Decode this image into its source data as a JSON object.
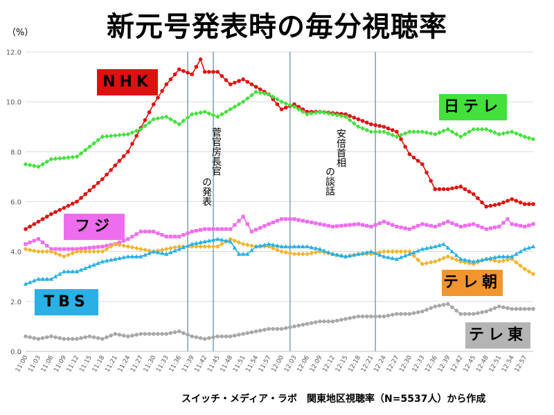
{
  "title": "新元号発表時の毎分視聴率",
  "unit_label": "（%）",
  "source_note": "スイッチ・メディア・ラボ　関東地区視聴率（N=5537人）から作成",
  "annotations": {
    "suga_line1": "菅官房長官",
    "suga_line2": "の発表",
    "abe_line1": "安倍首相",
    "abe_line2": "の談話"
  },
  "legend_tags": [
    {
      "label": "NHK",
      "bg": "#e01010"
    },
    {
      "label": "日テレ",
      "bg": "#44e03c"
    },
    {
      "label": "フジ",
      "bg": "#ee6cee"
    },
    {
      "label": "テレ朝",
      "bg": "#f2952e"
    },
    {
      "label": "TBS",
      "bg": "#2ab0e4"
    },
    {
      "label": "テレ東",
      "bg": "#b4b4b4"
    }
  ],
  "chart_data": {
    "type": "line",
    "x_start": "11:00",
    "x_end": "12:59",
    "x_tick_labels": [
      "11:00",
      "11:03",
      "11:06",
      "11:09",
      "11:12",
      "11:15",
      "11:18",
      "11:21",
      "11:24",
      "11:27",
      "11:30",
      "11:33",
      "11:36",
      "11:39",
      "11:42",
      "11:45",
      "11:48",
      "11:51",
      "11:54",
      "11:57",
      "12:00",
      "12:03",
      "12:06",
      "12:09",
      "12:12",
      "12:15",
      "12:18",
      "12:21",
      "12:24",
      "12:27",
      "12:30",
      "12:33",
      "12:36",
      "12:39",
      "12:42",
      "12:45",
      "12:48",
      "12:51",
      "12:54",
      "12:57"
    ],
    "ylim": [
      0,
      12
    ],
    "y_ticks": [
      "0.0",
      "2.0",
      "4.0",
      "6.0",
      "8.0",
      "10.0",
      "12.0"
    ],
    "vertical_markers": [
      "11:38",
      "11:44",
      "12:02",
      "12:22"
    ],
    "grid": true,
    "series": [
      {
        "name": "NHK",
        "color": "#e01010",
        "marker": "circle",
        "keypoints": [
          [
            "11:00",
            4.9
          ],
          [
            "11:06",
            5.5
          ],
          [
            "11:12",
            6.0
          ],
          [
            "11:18",
            6.9
          ],
          [
            "11:24",
            8.0
          ],
          [
            "11:30",
            9.9
          ],
          [
            "11:33",
            10.7
          ],
          [
            "11:36",
            11.3
          ],
          [
            "11:39",
            11.1
          ],
          [
            "11:41",
            11.7
          ],
          [
            "11:42",
            11.2
          ],
          [
            "11:45",
            11.2
          ],
          [
            "11:48",
            10.7
          ],
          [
            "11:51",
            10.9
          ],
          [
            "11:54",
            10.6
          ],
          [
            "11:57",
            10.3
          ],
          [
            "12:00",
            9.7
          ],
          [
            "12:03",
            9.9
          ],
          [
            "12:06",
            9.6
          ],
          [
            "12:09",
            9.6
          ],
          [
            "12:15",
            9.5
          ],
          [
            "12:18",
            9.3
          ],
          [
            "12:21",
            9.1
          ],
          [
            "12:24",
            9.0
          ],
          [
            "12:27",
            8.8
          ],
          [
            "12:30",
            7.9
          ],
          [
            "12:33",
            7.5
          ],
          [
            "12:36",
            6.5
          ],
          [
            "12:39",
            6.5
          ],
          [
            "12:42",
            6.6
          ],
          [
            "12:45",
            6.3
          ],
          [
            "12:48",
            5.8
          ],
          [
            "12:51",
            5.9
          ],
          [
            "12:54",
            6.1
          ],
          [
            "12:57",
            5.9
          ],
          [
            "12:59",
            5.9
          ]
        ]
      },
      {
        "name": "日テレ",
        "color": "#44e03c",
        "marker": "diamond",
        "keypoints": [
          [
            "11:00",
            7.5
          ],
          [
            "11:03",
            7.4
          ],
          [
            "11:06",
            7.7
          ],
          [
            "11:12",
            7.8
          ],
          [
            "11:18",
            8.6
          ],
          [
            "11:24",
            8.7
          ],
          [
            "11:27",
            8.9
          ],
          [
            "11:30",
            9.3
          ],
          [
            "11:33",
            9.4
          ],
          [
            "11:36",
            9.1
          ],
          [
            "11:39",
            9.5
          ],
          [
            "11:42",
            9.6
          ],
          [
            "11:45",
            9.4
          ],
          [
            "11:48",
            9.7
          ],
          [
            "11:51",
            10.0
          ],
          [
            "11:54",
            10.4
          ],
          [
            "11:57",
            10.3
          ],
          [
            "12:00",
            10.0
          ],
          [
            "12:03",
            9.8
          ],
          [
            "12:06",
            9.5
          ],
          [
            "12:09",
            9.6
          ],
          [
            "12:12",
            9.5
          ],
          [
            "12:15",
            9.4
          ],
          [
            "12:18",
            9.0
          ],
          [
            "12:21",
            8.8
          ],
          [
            "12:24",
            8.8
          ],
          [
            "12:27",
            8.6
          ],
          [
            "12:30",
            8.8
          ],
          [
            "12:33",
            8.8
          ],
          [
            "12:36",
            8.7
          ],
          [
            "12:39",
            8.9
          ],
          [
            "12:42",
            8.6
          ],
          [
            "12:45",
            8.9
          ],
          [
            "12:48",
            8.9
          ],
          [
            "12:51",
            8.7
          ],
          [
            "12:54",
            8.8
          ],
          [
            "12:57",
            8.6
          ],
          [
            "12:59",
            8.5
          ]
        ]
      },
      {
        "name": "フジ",
        "color": "#ee6cee",
        "marker": "square",
        "keypoints": [
          [
            "11:00",
            4.3
          ],
          [
            "11:03",
            4.5
          ],
          [
            "11:06",
            4.1
          ],
          [
            "11:12",
            4.1
          ],
          [
            "11:18",
            4.2
          ],
          [
            "11:21",
            4.3
          ],
          [
            "11:24",
            4.5
          ],
          [
            "11:27",
            4.8
          ],
          [
            "11:30",
            4.8
          ],
          [
            "11:33",
            4.6
          ],
          [
            "11:36",
            4.6
          ],
          [
            "11:39",
            4.8
          ],
          [
            "11:42",
            4.9
          ],
          [
            "11:45",
            4.9
          ],
          [
            "11:48",
            4.9
          ],
          [
            "11:51",
            5.4
          ],
          [
            "11:53",
            4.8
          ],
          [
            "11:57",
            5.1
          ],
          [
            "12:00",
            5.3
          ],
          [
            "12:03",
            5.3
          ],
          [
            "12:06",
            5.2
          ],
          [
            "12:12",
            5.0
          ],
          [
            "12:18",
            5.1
          ],
          [
            "12:21",
            5.0
          ],
          [
            "12:24",
            5.2
          ],
          [
            "12:27",
            5.0
          ],
          [
            "12:30",
            4.9
          ],
          [
            "12:33",
            5.1
          ],
          [
            "12:36",
            5.0
          ],
          [
            "12:39",
            5.2
          ],
          [
            "12:42",
            5.0
          ],
          [
            "12:45",
            5.1
          ],
          [
            "12:48",
            4.9
          ],
          [
            "12:51",
            5.0
          ],
          [
            "12:53",
            5.3
          ],
          [
            "12:54",
            5.1
          ],
          [
            "12:57",
            5.0
          ],
          [
            "12:59",
            5.1
          ]
        ]
      },
      {
        "name": "テレ朝",
        "color": "#f2b42a",
        "marker": "diamond",
        "keypoints": [
          [
            "11:00",
            4.1
          ],
          [
            "11:03",
            4.0
          ],
          [
            "11:06",
            4.0
          ],
          [
            "11:09",
            3.8
          ],
          [
            "11:12",
            4.0
          ],
          [
            "11:18",
            4.0
          ],
          [
            "11:21",
            4.3
          ],
          [
            "11:24",
            4.2
          ],
          [
            "11:27",
            4.1
          ],
          [
            "11:30",
            4.0
          ],
          [
            "11:33",
            4.1
          ],
          [
            "11:36",
            4.2
          ],
          [
            "11:39",
            4.2
          ],
          [
            "11:42",
            4.2
          ],
          [
            "11:45",
            4.2
          ],
          [
            "11:48",
            4.5
          ],
          [
            "11:51",
            4.3
          ],
          [
            "11:54",
            4.2
          ],
          [
            "11:57",
            4.2
          ],
          [
            "12:00",
            4.0
          ],
          [
            "12:03",
            3.9
          ],
          [
            "12:06",
            3.9
          ],
          [
            "12:09",
            4.0
          ],
          [
            "12:12",
            3.9
          ],
          [
            "12:15",
            3.8
          ],
          [
            "12:18",
            3.9
          ],
          [
            "12:21",
            3.9
          ],
          [
            "12:24",
            4.0
          ],
          [
            "12:27",
            4.0
          ],
          [
            "12:30",
            4.0
          ],
          [
            "12:33",
            3.5
          ],
          [
            "12:36",
            3.6
          ],
          [
            "12:39",
            3.8
          ],
          [
            "12:42",
            3.6
          ],
          [
            "12:45",
            3.5
          ],
          [
            "12:48",
            3.7
          ],
          [
            "12:51",
            3.6
          ],
          [
            "12:54",
            3.7
          ],
          [
            "12:57",
            3.3
          ],
          [
            "12:59",
            3.1
          ]
        ]
      },
      {
        "name": "TBS",
        "color": "#2ab0e4",
        "marker": "triangle",
        "keypoints": [
          [
            "11:00",
            2.7
          ],
          [
            "11:03",
            2.9
          ],
          [
            "11:06",
            2.9
          ],
          [
            "11:09",
            3.2
          ],
          [
            "11:12",
            3.2
          ],
          [
            "11:15",
            3.4
          ],
          [
            "11:18",
            3.6
          ],
          [
            "11:21",
            3.7
          ],
          [
            "11:24",
            3.8
          ],
          [
            "11:27",
            3.8
          ],
          [
            "11:30",
            4.0
          ],
          [
            "11:33",
            3.9
          ],
          [
            "11:36",
            4.1
          ],
          [
            "11:39",
            4.3
          ],
          [
            "11:42",
            4.4
          ],
          [
            "11:45",
            4.5
          ],
          [
            "11:48",
            4.4
          ],
          [
            "11:50",
            3.9
          ],
          [
            "11:52",
            3.9
          ],
          [
            "11:54",
            4.2
          ],
          [
            "11:57",
            4.3
          ],
          [
            "12:00",
            4.2
          ],
          [
            "12:06",
            4.2
          ],
          [
            "12:09",
            4.1
          ],
          [
            "12:12",
            3.9
          ],
          [
            "12:15",
            3.8
          ],
          [
            "12:18",
            3.9
          ],
          [
            "12:21",
            4.0
          ],
          [
            "12:24",
            3.8
          ],
          [
            "12:27",
            3.7
          ],
          [
            "12:30",
            3.9
          ],
          [
            "12:33",
            4.1
          ],
          [
            "12:36",
            4.2
          ],
          [
            "12:38",
            4.3
          ],
          [
            "12:40",
            4.0
          ],
          [
            "12:42",
            3.7
          ],
          [
            "12:45",
            3.6
          ],
          [
            "12:48",
            3.7
          ],
          [
            "12:51",
            3.8
          ],
          [
            "12:54",
            3.8
          ],
          [
            "12:57",
            4.1
          ],
          [
            "12:59",
            4.2
          ]
        ]
      },
      {
        "name": "テレ東",
        "color": "#a8a8a8",
        "marker": "circle",
        "keypoints": [
          [
            "11:00",
            0.6
          ],
          [
            "11:03",
            0.5
          ],
          [
            "11:06",
            0.6
          ],
          [
            "11:09",
            0.5
          ],
          [
            "11:12",
            0.5
          ],
          [
            "11:15",
            0.6
          ],
          [
            "11:18",
            0.5
          ],
          [
            "11:21",
            0.7
          ],
          [
            "11:24",
            0.6
          ],
          [
            "11:27",
            0.7
          ],
          [
            "11:30",
            0.7
          ],
          [
            "11:33",
            0.7
          ],
          [
            "11:36",
            0.8
          ],
          [
            "11:39",
            0.6
          ],
          [
            "11:42",
            0.5
          ],
          [
            "11:45",
            0.6
          ],
          [
            "11:48",
            0.6
          ],
          [
            "11:51",
            0.7
          ],
          [
            "11:54",
            0.8
          ],
          [
            "11:57",
            0.9
          ],
          [
            "12:00",
            0.9
          ],
          [
            "12:03",
            1.0
          ],
          [
            "12:06",
            1.1
          ],
          [
            "12:09",
            1.2
          ],
          [
            "12:12",
            1.2
          ],
          [
            "12:15",
            1.3
          ],
          [
            "12:18",
            1.4
          ],
          [
            "12:21",
            1.4
          ],
          [
            "12:24",
            1.4
          ],
          [
            "12:27",
            1.5
          ],
          [
            "12:30",
            1.5
          ],
          [
            "12:33",
            1.6
          ],
          [
            "12:36",
            1.8
          ],
          [
            "12:39",
            1.9
          ],
          [
            "12:42",
            1.5
          ],
          [
            "12:45",
            1.5
          ],
          [
            "12:48",
            1.6
          ],
          [
            "12:51",
            1.8
          ],
          [
            "12:54",
            1.7
          ],
          [
            "12:57",
            1.7
          ],
          [
            "12:59",
            1.7
          ]
        ]
      }
    ]
  }
}
